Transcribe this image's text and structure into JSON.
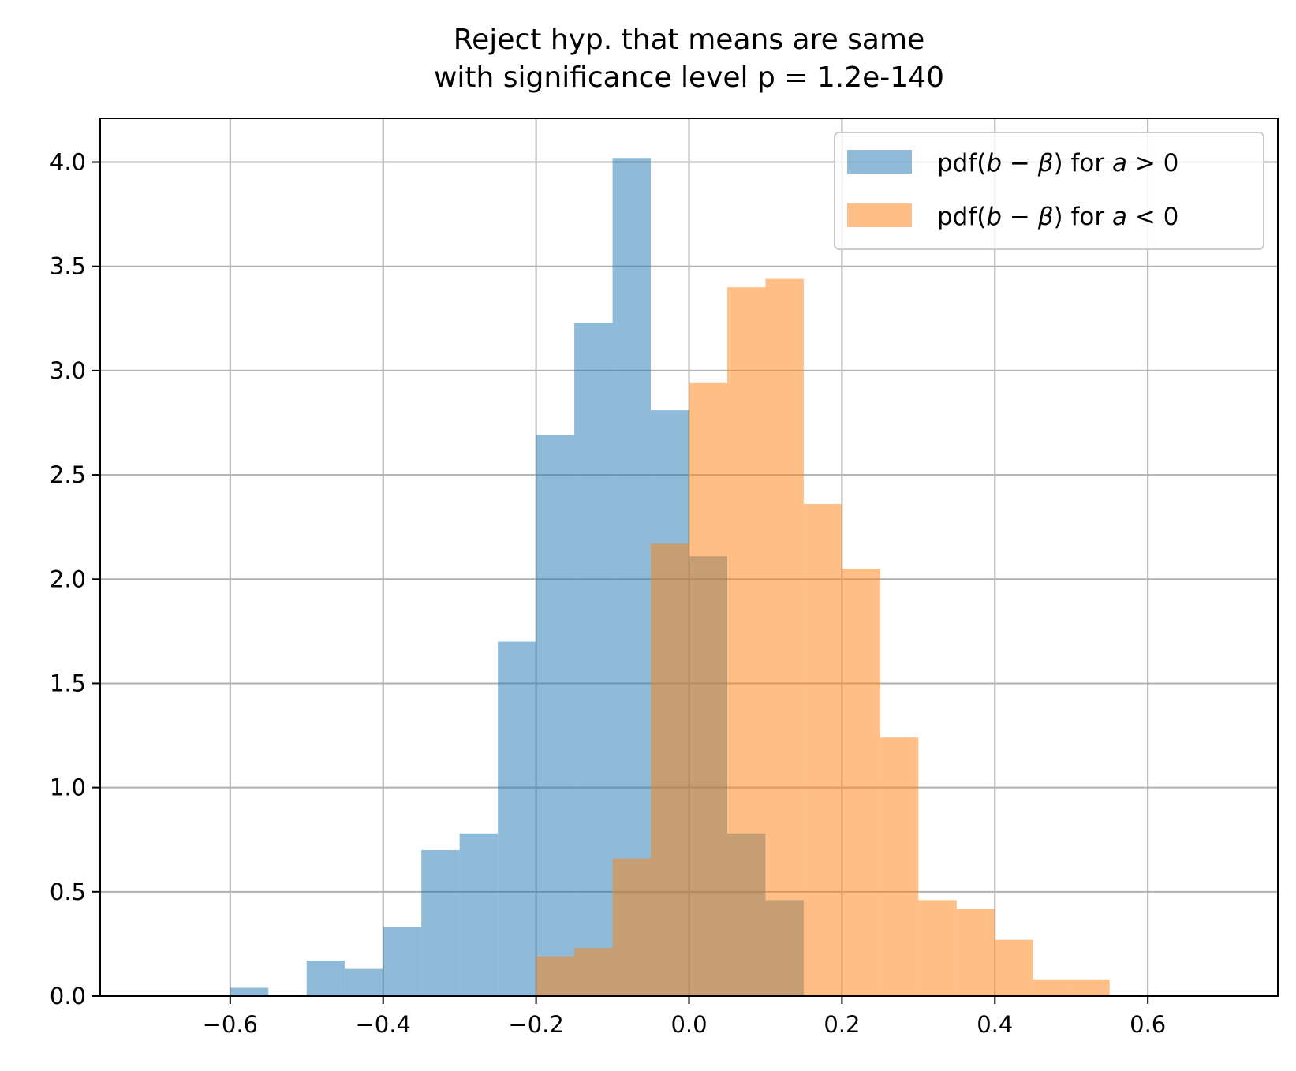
{
  "chart_data": {
    "type": "bar",
    "subtype": "histogram-overlay",
    "title": "Reject hyp. that means are same\nwith significance level p = 1.2e-140",
    "title_lines": [
      "Reject hyp. that means are same",
      "with significance level p = 1.2e-140"
    ],
    "xlabel": "",
    "ylabel": "",
    "xlim": [
      -0.77,
      0.77
    ],
    "ylim": [
      0,
      4.21
    ],
    "xticks": [
      -0.6,
      -0.4,
      -0.2,
      0.0,
      0.2,
      0.4,
      0.6
    ],
    "xtick_labels": [
      "−0.6",
      "−0.4",
      "−0.2",
      "0.0",
      "0.2",
      "0.4",
      "0.6"
    ],
    "yticks": [
      0.0,
      0.5,
      1.0,
      1.5,
      2.0,
      2.5,
      3.0,
      3.5,
      4.0
    ],
    "ytick_labels": [
      "0.0",
      "0.5",
      "1.0",
      "1.5",
      "2.0",
      "2.5",
      "3.0",
      "3.5",
      "4.0"
    ],
    "grid": true,
    "legend_position": "top-right",
    "series": [
      {
        "name": "pdf(b − β) for a > 0",
        "legend_parts": [
          "pdf(",
          "b",
          " − ",
          "β",
          ") for ",
          "a",
          " > 0"
        ],
        "color": "#1f77b4",
        "alpha": 0.5,
        "bin_width": 0.05,
        "bins": [
          [
            -0.6,
            0.04
          ],
          [
            -0.5,
            0.17
          ],
          [
            -0.45,
            0.13
          ],
          [
            -0.4,
            0.33
          ],
          [
            -0.35,
            0.7
          ],
          [
            -0.3,
            0.78
          ],
          [
            -0.25,
            1.7
          ],
          [
            -0.2,
            2.69
          ],
          [
            -0.15,
            3.23
          ],
          [
            -0.1,
            4.02
          ],
          [
            -0.05,
            2.81
          ],
          [
            0.0,
            2.11
          ],
          [
            0.05,
            0.78
          ],
          [
            0.1,
            0.46
          ]
        ]
      },
      {
        "name": "pdf(b − β) for a < 0",
        "legend_parts": [
          "pdf(",
          "b",
          " − ",
          "β",
          ") for ",
          "a",
          " < 0"
        ],
        "color": "#ff7f0e",
        "alpha": 0.5,
        "bin_width": 0.05,
        "bins": [
          [
            -0.2,
            0.19
          ],
          [
            -0.15,
            0.23
          ],
          [
            -0.1,
            0.66
          ],
          [
            -0.05,
            2.17
          ],
          [
            0.0,
            2.94
          ],
          [
            0.05,
            3.4
          ],
          [
            0.1,
            3.44
          ],
          [
            0.15,
            2.36
          ],
          [
            0.2,
            2.05
          ],
          [
            0.25,
            1.24
          ],
          [
            0.3,
            0.46
          ],
          [
            0.35,
            0.42
          ],
          [
            0.4,
            0.27
          ],
          [
            0.45,
            0.08
          ],
          [
            0.5,
            0.08
          ]
        ]
      }
    ]
  }
}
